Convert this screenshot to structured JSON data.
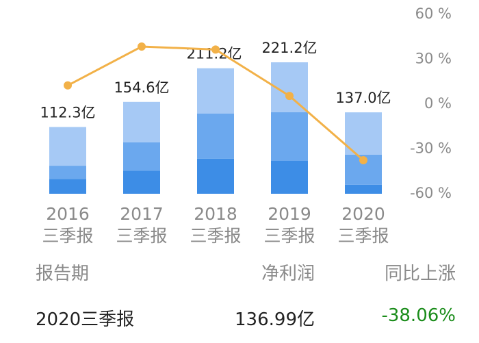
{
  "colors": {
    "bar_dark": "#3d8de6",
    "bar_mid": "#6ba8ee",
    "bar_light": "#a6c9f5",
    "line": "#f2b148",
    "axis_text": "#8a8a8a",
    "negative": "#1a8c1a"
  },
  "chart_data": {
    "type": "bar",
    "categories": [
      "2016\n三季报",
      "2017\n三季报",
      "2018\n三季报",
      "2019\n三季报",
      "2020\n三季报"
    ],
    "category_year": [
      "2016",
      "2017",
      "2018",
      "2019",
      "2020"
    ],
    "category_period": [
      "三季报",
      "三季报",
      "三季报",
      "三季报",
      "三季报"
    ],
    "values": [
      112.3,
      154.6,
      211.2,
      221.2,
      137.0
    ],
    "value_labels": [
      "112.3亿",
      "154.6亿",
      "211.2亿",
      "221.2亿",
      "137.0亿"
    ],
    "segments": [
      [
        0.22,
        0.2,
        0.58
      ],
      [
        0.25,
        0.31,
        0.44
      ],
      [
        0.28,
        0.36,
        0.36
      ],
      [
        0.25,
        0.37,
        0.38
      ],
      [
        0.11,
        0.37,
        0.52
      ]
    ],
    "line_values": [
      12,
      38,
      36,
      5,
      -38
    ],
    "right_axis": {
      "ticks": [
        60,
        30,
        0,
        -30,
        -60
      ],
      "tick_labels": [
        "60 %",
        "30 %",
        "0 %",
        "-30 %",
        "-60 %"
      ],
      "range": [
        -60,
        60
      ]
    },
    "grid": false
  },
  "table": {
    "headers": [
      "报告期",
      "净利润",
      "同比上涨"
    ],
    "row": [
      "2020三季报",
      "136.99亿",
      "-38.06%"
    ]
  }
}
